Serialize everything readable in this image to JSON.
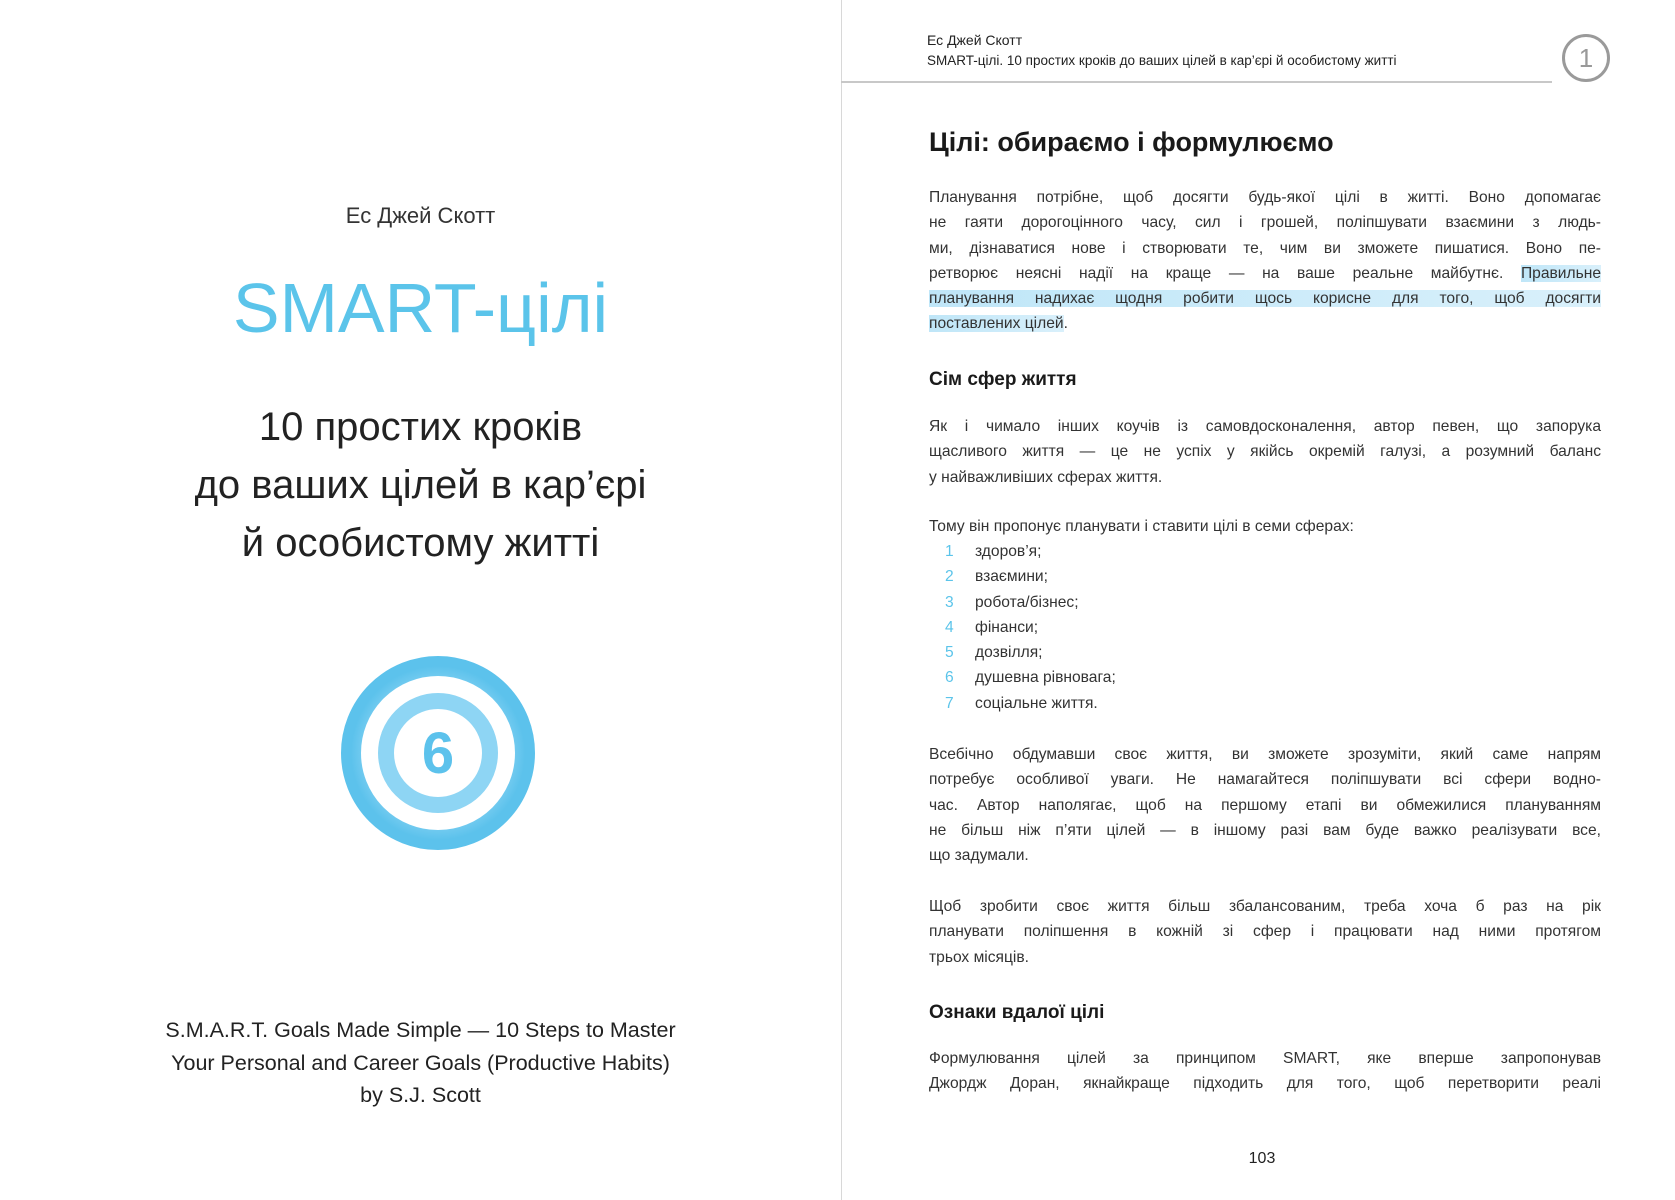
{
  "left_page": {
    "author": "Ес Джей Скотт",
    "title": "SMART-цілі",
    "subtitle_lines": [
      "10 простих кроків",
      "до ваших цілей в кар’єрі",
      "й особистому житті"
    ],
    "badge_number": "6",
    "original_title_lines": [
      "S.M.A.R.T. Goals Made Simple — 10 Steps to Master",
      "Your Personal and Career Goals (Productive Habits)",
      "by S.J. Scott"
    ],
    "accent_color": "#5bc4ea"
  },
  "right_page": {
    "header": {
      "author": "Ес Джей Скотт",
      "book": "SMART-цілі. 10 простих кроків до ваших цілей в кар’єрі й особистому житті",
      "chapter_number": "1"
    },
    "heading": "Цілі: обираємо і формулюємо",
    "p1": {
      "l1": "Планування потрібне, щоб досягти будь-якої цілі в житті. Воно допомагає",
      "l2": "не гаяти дорогоцінного часу, сил і грошей, поліпшувати взаємини з людь-",
      "l3": "ми, дізнаватися нове і створювати те, чим ви зможете пишатися. Воно пе-",
      "l4a": "ретворює неясні надії на краще — на ваше реальне майбутнє. ",
      "l4hl": "Правильне",
      "l5hl": "планування надихає щодня робити щось корисне для того, щоб досягти",
      "l6hl": "поставлених цілей",
      "l6b": "."
    },
    "section1": "Сім сфер життя",
    "p2": [
      "Як і чимало інших коучів із самовдосконалення, автор певен, що запорука",
      "щасливого життя — це не успіх у якійсь окремій галузі, а розумний баланс",
      "у найважливіших сферах життя."
    ],
    "p3": "Тому він пропонує планувати і ставити цілі в семи сферах:",
    "list": [
      {
        "n": "1",
        "text": "здоров’я;"
      },
      {
        "n": "2",
        "text": "взаємини;"
      },
      {
        "n": "3",
        "text": "робота/бізнес;"
      },
      {
        "n": "4",
        "text": "фінанси;"
      },
      {
        "n": "5",
        "text": "дозвілля;"
      },
      {
        "n": "6",
        "text": "душевна рівновага;"
      },
      {
        "n": "7",
        "text": "соціальне життя."
      }
    ],
    "p4": [
      "Всебічно обдумавши своє життя, ви зможете зрозуміти, який саме напрям",
      "потребує особливої уваги. Не намагайтеся поліпшувати всі сфери водно-",
      "час. Автор наполягає, щоб на першому етапі ви обмежилися плануванням",
      "не більш ніж п’яти цілей — в іншому разі вам буде важко реалізувати все,",
      "що задумали."
    ],
    "p5": [
      "Щоб зробити своє життя більш збалансованим, треба хоча б раз на рік",
      "планувати поліпшення в кожній зі сфер і працювати над ними протягом",
      "трьох місяців."
    ],
    "section2": "Ознаки вдалої цілі",
    "p6": [
      "Формулювання цілей за принципом SMART, яке вперше запропонував",
      "Джордж Доран, якнайкраще підходить для того, щоб перетворити реалі"
    ],
    "page_number": "103",
    "highlight_color": "#bfe6f8"
  }
}
